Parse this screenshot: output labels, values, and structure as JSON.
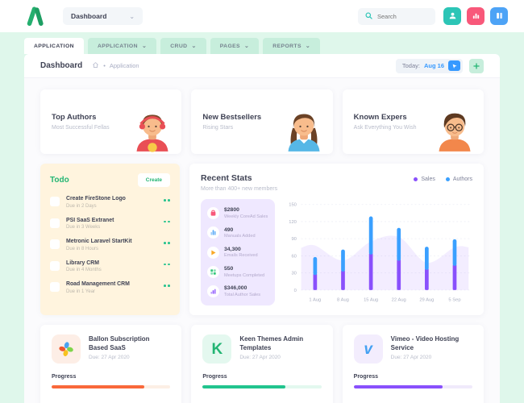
{
  "header": {
    "workspace": "Dashboard",
    "search_placeholder": "Search",
    "actions": [
      {
        "icon": "user-icon",
        "color": "#2CC5B6"
      },
      {
        "icon": "bar-chart-icon",
        "color": "#F8587A"
      },
      {
        "icon": "columns-icon",
        "color": "#4DA3F6"
      }
    ]
  },
  "tabs": {
    "items": [
      {
        "label": "APPLICATION",
        "active": true,
        "caret": false
      },
      {
        "label": "APPLICATION",
        "active": false,
        "caret": true
      },
      {
        "label": "CRUD",
        "active": false,
        "caret": true
      },
      {
        "label": "PAGES",
        "active": false,
        "caret": true
      },
      {
        "label": "REPORTS",
        "active": false,
        "caret": true
      }
    ]
  },
  "breadcrumb": {
    "title": "Dashboard",
    "separator": "•",
    "section": "Application",
    "today_label": "Today:",
    "today_value": "Aug 16"
  },
  "promo_cards": [
    {
      "title": "Top Authors",
      "subtitle": "Most Successful Fellas",
      "avatar": "boy-red-avatar"
    },
    {
      "title": "New Bestsellers",
      "subtitle": "Rising Stars",
      "avatar": "girl-blue-avatar"
    },
    {
      "title": "Known Expers",
      "subtitle": "Ask Everything You Wish",
      "avatar": "boy-glasses-avatar"
    }
  ],
  "todo": {
    "title": "Todo",
    "create_label": "Create",
    "items": [
      {
        "title": "Create FireStone Logo",
        "due": "Due in 2 Days"
      },
      {
        "title": "PSI SaaS Extranet",
        "due": "Due in 3 Weeks"
      },
      {
        "title": "Metronic Laravel StartKit",
        "due": "Due in 8 Hours"
      },
      {
        "title": "Library CRM",
        "due": "Due in 4 Months"
      },
      {
        "title": "Road Management CRM",
        "due": "Due in 1 Year"
      }
    ]
  },
  "recent_stats": {
    "title": "Recent Stats",
    "subtitle": "More than 400+ new members",
    "summary": [
      {
        "value": "$2800",
        "label": "Weekly CoreAd Sales",
        "icon": "bag-icon",
        "icon_color": "#F8587A"
      },
      {
        "value": "490",
        "label": "Manuals Added",
        "icon": "chart-icon",
        "icon_color": "#4DA3F6"
      },
      {
        "value": "34,300",
        "label": "Emails Received",
        "icon": "play-icon",
        "icon_color": "#F9A825"
      },
      {
        "value": "550",
        "label": "Meetups Completed",
        "icon": "grid-icon",
        "icon_color": "#34C77B"
      },
      {
        "value": "$346,000",
        "label": "Total Author Sales",
        "icon": "bars-icon",
        "icon_color": "#8950FC"
      }
    ]
  },
  "chart_data": {
    "type": "bar",
    "stacked": true,
    "categories": [
      "1 Aug",
      "8 Aug",
      "15 Aug",
      "22 Aug",
      "29 Aug",
      "5 Sep"
    ],
    "series": [
      {
        "name": "Sales",
        "values": [
          29,
          35,
          65,
          54,
          38,
          45
        ],
        "color": "#8950FC"
      },
      {
        "name": "Authors",
        "values": [
          29,
          36,
          64,
          55,
          38,
          44
        ],
        "color": "#3AA0FF"
      }
    ],
    "area_series": {
      "name": "Trend",
      "values": [
        78,
        52,
        85,
        93,
        48,
        75
      ],
      "color": "#8950FC",
      "opacity": 0.1
    },
    "title": "Recent Stats",
    "xlabel": "",
    "ylabel": "",
    "ylim": [
      0,
      150
    ],
    "yticks": [
      0,
      30,
      60,
      90,
      120,
      150
    ],
    "grid": "dashed-horizontal",
    "legend_position": "top-right"
  },
  "projects": [
    {
      "title": "Ballon Subscription Based SaaS",
      "due": "Due: 27 Apr 2020",
      "progress_label": "Progress",
      "progress": 78,
      "accent": "#F9683A",
      "track": "#FCEFE5",
      "tile_bg": "#FDEEE6",
      "icon": "flower-logo-icon",
      "glyph": "",
      "glyph_color": ""
    },
    {
      "title": "Keen Themes Admin Templates",
      "due": "Due: 27 Apr 2020",
      "progress_label": "Progress",
      "progress": 70,
      "accent": "#22C48E",
      "track": "#E3F8EF",
      "tile_bg": "#E4F8EF",
      "icon": "keen-logo-icon",
      "glyph": "K",
      "glyph_color": "#23B573"
    },
    {
      "title": "Vimeo - Video Hosting Service",
      "due": "Due: 27 Apr 2020",
      "progress_label": "Progress",
      "progress": 75,
      "accent": "#8950FC",
      "track": "#F0EAFB",
      "tile_bg": "#F3EDFD",
      "icon": "vimeo-logo-icon",
      "glyph": "v",
      "glyph_color": "#44A1F2"
    }
  ]
}
